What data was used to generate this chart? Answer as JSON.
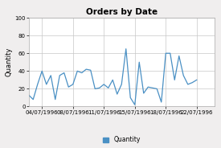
{
  "title": "Orders by Date",
  "ylabel": "Quantity",
  "legend_label": "Quantity",
  "line_color": "#4a90c4",
  "background_color": "#f0eeee",
  "plot_bg_color": "#ffffff",
  "grid_color": "#c8c8c8",
  "ylim": [
    0,
    100
  ],
  "yticks": [
    0,
    20,
    40,
    60,
    80,
    100
  ],
  "x_tick_labels": [
    "04/07/1996",
    "08/07/1996",
    "11/07/1996",
    "15/07/1996",
    "18/07/1996",
    "22/07/1996"
  ],
  "x_tick_positions": [
    3,
    10,
    17,
    24,
    31,
    38
  ],
  "xlim": [
    0,
    42
  ],
  "values": [
    13,
    8,
    25,
    40,
    25,
    35,
    8,
    35,
    38,
    22,
    25,
    40,
    38,
    42,
    41,
    20,
    21,
    25,
    21,
    30,
    14,
    25,
    65,
    10,
    2,
    50,
    15,
    22,
    21,
    20,
    5,
    60,
    60,
    30,
    57,
    35,
    25,
    27,
    30
  ],
  "title_fontsize": 7.5,
  "ylabel_fontsize": 6,
  "tick_fontsize": 5,
  "legend_fontsize": 5.5,
  "line_width": 0.9
}
